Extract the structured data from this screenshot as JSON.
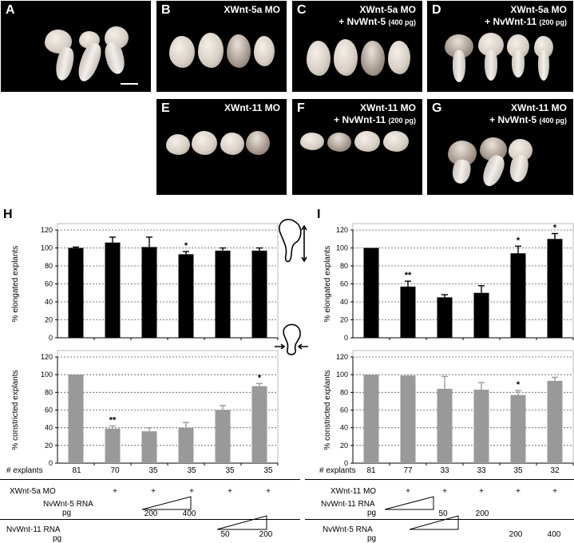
{
  "panels": [
    {
      "id": "A",
      "caption": []
    },
    {
      "id": "B",
      "caption": [
        "XWnt-5a MO"
      ]
    },
    {
      "id": "C",
      "caption": [
        "XWnt-5a MO",
        "+ NvWnt-5",
        "(400 pg)"
      ]
    },
    {
      "id": "D",
      "caption": [
        "XWnt-5a MO",
        "+ NvWnt-11",
        "(200 pg)"
      ]
    },
    {
      "id": "E",
      "caption": [
        "XWnt-11 MO"
      ]
    },
    {
      "id": "F",
      "caption": [
        "XWnt-11 MO",
        "+ NvWnt-11",
        "(200 pg)"
      ]
    },
    {
      "id": "G",
      "caption": [
        "XWnt-11 MO",
        "+ NvWnt-5",
        "(400 pg)"
      ]
    }
  ],
  "section_labels": {
    "H": "H",
    "I": "I"
  },
  "chart_data": [
    {
      "id": "H-top",
      "type": "bar",
      "ylabel": "% elongated explants",
      "ylim": [
        0,
        120
      ],
      "yticks": [
        0,
        20,
        40,
        60,
        80,
        100,
        120
      ],
      "grid": true,
      "color": "#000000",
      "values": [
        100,
        106,
        101,
        93,
        97,
        97
      ],
      "errors": [
        1,
        6,
        11,
        3,
        3,
        3
      ],
      "annotations": [
        "",
        "",
        "",
        "*",
        "",
        ""
      ]
    },
    {
      "id": "H-bottom",
      "type": "bar",
      "ylabel": "% constricted explants",
      "ylim": [
        0,
        120
      ],
      "yticks": [
        0,
        20,
        40,
        60,
        80,
        100,
        120
      ],
      "grid": true,
      "color": "#999999",
      "values": [
        100,
        39,
        36,
        40,
        60,
        87
      ],
      "errors": [
        0,
        3,
        4,
        6,
        5,
        3
      ],
      "annotations": [
        "",
        "**",
        "",
        "",
        "",
        "*"
      ]
    },
    {
      "id": "I-top",
      "type": "bar",
      "ylabel": "% elongated explants",
      "ylim": [
        0,
        120
      ],
      "yticks": [
        0,
        20,
        40,
        60,
        80,
        100,
        120
      ],
      "grid": true,
      "color": "#000000",
      "values": [
        100,
        57,
        45,
        50,
        94,
        110
      ],
      "errors": [
        0,
        6,
        3,
        8,
        8,
        6
      ],
      "annotations": [
        "",
        "**",
        "",
        "",
        "*",
        "*"
      ]
    },
    {
      "id": "I-bottom",
      "type": "bar",
      "ylabel": "% constricted explants",
      "ylim": [
        0,
        120
      ],
      "yticks": [
        0,
        20,
        40,
        60,
        80,
        100,
        120
      ],
      "grid": true,
      "color": "#999999",
      "values": [
        100,
        99,
        84,
        83,
        77,
        93
      ],
      "errors": [
        0,
        0,
        14,
        8,
        5,
        4
      ],
      "annotations": [
        "",
        "",
        "",
        "",
        "*",
        ""
      ]
    }
  ],
  "tables": {
    "H": {
      "explants_label": "# explants",
      "explants": [
        "81",
        "70",
        "35",
        "35",
        "35",
        "35"
      ],
      "rows": [
        {
          "label": "XWnt-5a MO",
          "marks": [
            "",
            "+",
            "+",
            "+",
            "+",
            "+"
          ]
        },
        {
          "label": "NvWnt-5 RNA",
          "unit": "pg",
          "ramp_labels": [
            "200",
            "400"
          ]
        },
        {
          "label": "NvWnt-11 RNA",
          "unit": "pg",
          "ramp_labels": [
            "50",
            "200"
          ]
        }
      ]
    },
    "I": {
      "explants_label": "# explants",
      "explants": [
        "81",
        "77",
        "33",
        "33",
        "35",
        "32"
      ],
      "rows": [
        {
          "label": "XWnt-11 MO",
          "marks": [
            "",
            "+",
            "+",
            "+",
            "+",
            "+"
          ]
        },
        {
          "label": "NvWnt-11 RNA",
          "unit": "pg",
          "ramp_labels": [
            "50",
            "200"
          ]
        },
        {
          "label": "NvWnt-5 RNA",
          "unit": "pg",
          "ramp_labels": [
            "200",
            "400"
          ]
        }
      ]
    }
  }
}
